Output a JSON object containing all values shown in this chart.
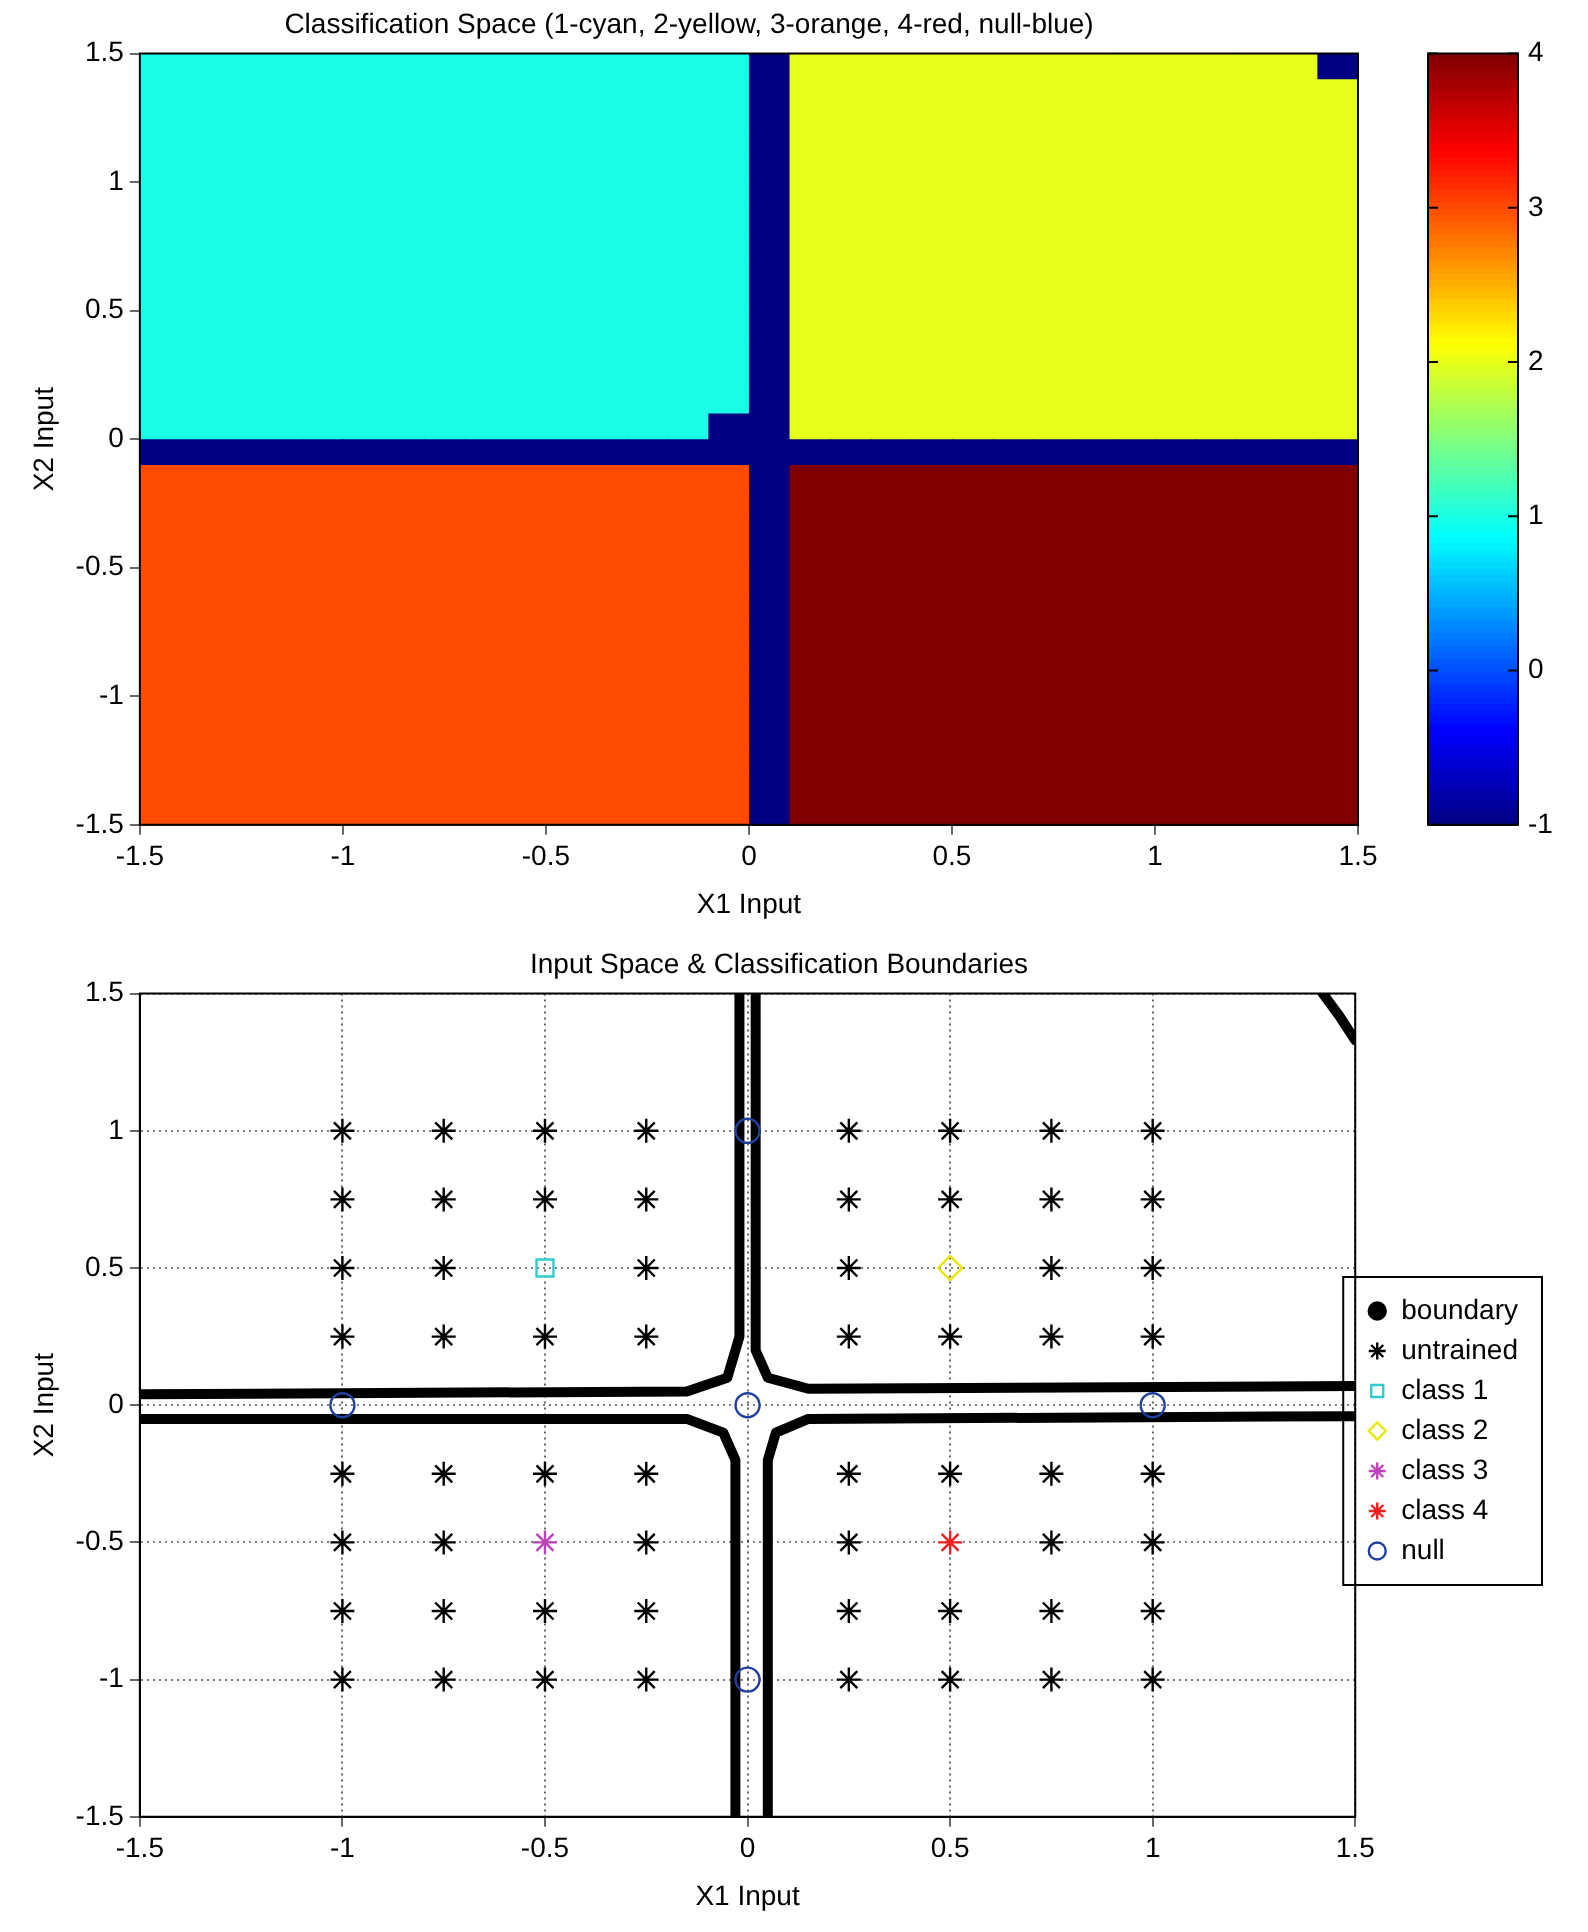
{
  "chart_data": [
    {
      "type": "heatmap",
      "title": "Classification Space (1-cyan, 2-yellow, 3-orange, 4-red, null-blue)",
      "xlabel": "X1 Input",
      "ylabel": "X2 Input",
      "cells": [
        [
          1,
          1,
          1,
          1,
          1,
          1,
          1,
          1,
          1,
          1,
          1,
          1,
          1,
          1,
          1,
          -1,
          2,
          2,
          2,
          2,
          2,
          2,
          2,
          2,
          2,
          2,
          2,
          2,
          2,
          -1
        ],
        [
          1,
          1,
          1,
          1,
          1,
          1,
          1,
          1,
          1,
          1,
          1,
          1,
          1,
          1,
          1,
          -1,
          2,
          2,
          2,
          2,
          2,
          2,
          2,
          2,
          2,
          2,
          2,
          2,
          2,
          2
        ],
        [
          1,
          1,
          1,
          1,
          1,
          1,
          1,
          1,
          1,
          1,
          1,
          1,
          1,
          1,
          1,
          -1,
          2,
          2,
          2,
          2,
          2,
          2,
          2,
          2,
          2,
          2,
          2,
          2,
          2,
          2
        ],
        [
          1,
          1,
          1,
          1,
          1,
          1,
          1,
          1,
          1,
          1,
          1,
          1,
          1,
          1,
          1,
          -1,
          2,
          2,
          2,
          2,
          2,
          2,
          2,
          2,
          2,
          2,
          2,
          2,
          2,
          2
        ],
        [
          1,
          1,
          1,
          1,
          1,
          1,
          1,
          1,
          1,
          1,
          1,
          1,
          1,
          1,
          1,
          -1,
          2,
          2,
          2,
          2,
          2,
          2,
          2,
          2,
          2,
          2,
          2,
          2,
          2,
          2
        ],
        [
          1,
          1,
          1,
          1,
          1,
          1,
          1,
          1,
          1,
          1,
          1,
          1,
          1,
          1,
          1,
          -1,
          2,
          2,
          2,
          2,
          2,
          2,
          2,
          2,
          2,
          2,
          2,
          2,
          2,
          2
        ],
        [
          1,
          1,
          1,
          1,
          1,
          1,
          1,
          1,
          1,
          1,
          1,
          1,
          1,
          1,
          1,
          -1,
          2,
          2,
          2,
          2,
          2,
          2,
          2,
          2,
          2,
          2,
          2,
          2,
          2,
          2
        ],
        [
          1,
          1,
          1,
          1,
          1,
          1,
          1,
          1,
          1,
          1,
          1,
          1,
          1,
          1,
          1,
          -1,
          2,
          2,
          2,
          2,
          2,
          2,
          2,
          2,
          2,
          2,
          2,
          2,
          2,
          2
        ],
        [
          1,
          1,
          1,
          1,
          1,
          1,
          1,
          1,
          1,
          1,
          1,
          1,
          1,
          1,
          1,
          -1,
          2,
          2,
          2,
          2,
          2,
          2,
          2,
          2,
          2,
          2,
          2,
          2,
          2,
          2
        ],
        [
          1,
          1,
          1,
          1,
          1,
          1,
          1,
          1,
          1,
          1,
          1,
          1,
          1,
          1,
          1,
          -1,
          2,
          2,
          2,
          2,
          2,
          2,
          2,
          2,
          2,
          2,
          2,
          2,
          2,
          2
        ],
        [
          1,
          1,
          1,
          1,
          1,
          1,
          1,
          1,
          1,
          1,
          1,
          1,
          1,
          1,
          1,
          -1,
          2,
          2,
          2,
          2,
          2,
          2,
          2,
          2,
          2,
          2,
          2,
          2,
          2,
          2
        ],
        [
          1,
          1,
          1,
          1,
          1,
          1,
          1,
          1,
          1,
          1,
          1,
          1,
          1,
          1,
          1,
          -1,
          2,
          2,
          2,
          2,
          2,
          2,
          2,
          2,
          2,
          2,
          2,
          2,
          2,
          2
        ],
        [
          1,
          1,
          1,
          1,
          1,
          1,
          1,
          1,
          1,
          1,
          1,
          1,
          1,
          1,
          1,
          -1,
          2,
          2,
          2,
          2,
          2,
          2,
          2,
          2,
          2,
          2,
          2,
          2,
          2,
          2
        ],
        [
          1,
          1,
          1,
          1,
          1,
          1,
          1,
          1,
          1,
          1,
          1,
          1,
          1,
          1,
          1,
          -1,
          2,
          2,
          2,
          2,
          2,
          2,
          2,
          2,
          2,
          2,
          2,
          2,
          2,
          2
        ],
        [
          1,
          1,
          1,
          1,
          1,
          1,
          1,
          1,
          1,
          1,
          1,
          1,
          1,
          1,
          -1,
          -1,
          2,
          2,
          2,
          2,
          2,
          2,
          2,
          2,
          2,
          2,
          2,
          2,
          2,
          2
        ],
        [
          -1,
          -1,
          -1,
          -1,
          -1,
          -1,
          -1,
          -1,
          -1,
          -1,
          -1,
          -1,
          -1,
          -1,
          -1,
          -1,
          -1,
          -1,
          -1,
          -1,
          -1,
          -1,
          -1,
          -1,
          -1,
          -1,
          -1,
          -1,
          -1,
          -1
        ],
        [
          3,
          3,
          3,
          3,
          3,
          3,
          3,
          3,
          3,
          3,
          3,
          3,
          3,
          3,
          3,
          -1,
          4,
          4,
          4,
          4,
          4,
          4,
          4,
          4,
          4,
          4,
          4,
          4,
          4,
          4
        ],
        [
          3,
          3,
          3,
          3,
          3,
          3,
          3,
          3,
          3,
          3,
          3,
          3,
          3,
          3,
          3,
          -1,
          4,
          4,
          4,
          4,
          4,
          4,
          4,
          4,
          4,
          4,
          4,
          4,
          4,
          4
        ],
        [
          3,
          3,
          3,
          3,
          3,
          3,
          3,
          3,
          3,
          3,
          3,
          3,
          3,
          3,
          3,
          -1,
          4,
          4,
          4,
          4,
          4,
          4,
          4,
          4,
          4,
          4,
          4,
          4,
          4,
          4
        ],
        [
          3,
          3,
          3,
          3,
          3,
          3,
          3,
          3,
          3,
          3,
          3,
          3,
          3,
          3,
          3,
          -1,
          4,
          4,
          4,
          4,
          4,
          4,
          4,
          4,
          4,
          4,
          4,
          4,
          4,
          4
        ],
        [
          3,
          3,
          3,
          3,
          3,
          3,
          3,
          3,
          3,
          3,
          3,
          3,
          3,
          3,
          3,
          -1,
          4,
          4,
          4,
          4,
          4,
          4,
          4,
          4,
          4,
          4,
          4,
          4,
          4,
          4
        ],
        [
          3,
          3,
          3,
          3,
          3,
          3,
          3,
          3,
          3,
          3,
          3,
          3,
          3,
          3,
          3,
          -1,
          4,
          4,
          4,
          4,
          4,
          4,
          4,
          4,
          4,
          4,
          4,
          4,
          4,
          4
        ],
        [
          3,
          3,
          3,
          3,
          3,
          3,
          3,
          3,
          3,
          3,
          3,
          3,
          3,
          3,
          3,
          -1,
          4,
          4,
          4,
          4,
          4,
          4,
          4,
          4,
          4,
          4,
          4,
          4,
          4,
          4
        ],
        [
          3,
          3,
          3,
          3,
          3,
          3,
          3,
          3,
          3,
          3,
          3,
          3,
          3,
          3,
          3,
          -1,
          4,
          4,
          4,
          4,
          4,
          4,
          4,
          4,
          4,
          4,
          4,
          4,
          4,
          4
        ],
        [
          3,
          3,
          3,
          3,
          3,
          3,
          3,
          3,
          3,
          3,
          3,
          3,
          3,
          3,
          3,
          -1,
          4,
          4,
          4,
          4,
          4,
          4,
          4,
          4,
          4,
          4,
          4,
          4,
          4,
          4
        ],
        [
          3,
          3,
          3,
          3,
          3,
          3,
          3,
          3,
          3,
          3,
          3,
          3,
          3,
          3,
          3,
          -1,
          4,
          4,
          4,
          4,
          4,
          4,
          4,
          4,
          4,
          4,
          4,
          4,
          4,
          4
        ],
        [
          3,
          3,
          3,
          3,
          3,
          3,
          3,
          3,
          3,
          3,
          3,
          3,
          3,
          3,
          3,
          -1,
          4,
          4,
          4,
          4,
          4,
          4,
          4,
          4,
          4,
          4,
          4,
          4,
          4,
          4
        ],
        [
          3,
          3,
          3,
          3,
          3,
          3,
          3,
          3,
          3,
          3,
          3,
          3,
          3,
          3,
          3,
          -1,
          4,
          4,
          4,
          4,
          4,
          4,
          4,
          4,
          4,
          4,
          4,
          4,
          4,
          4
        ],
        [
          3,
          3,
          3,
          3,
          3,
          3,
          3,
          3,
          3,
          3,
          3,
          3,
          3,
          3,
          3,
          -1,
          4,
          4,
          4,
          4,
          4,
          4,
          4,
          4,
          4,
          4,
          4,
          4,
          4,
          4
        ],
        [
          3,
          3,
          3,
          3,
          3,
          3,
          3,
          3,
          3,
          3,
          3,
          3,
          3,
          3,
          3,
          -1,
          4,
          4,
          4,
          4,
          4,
          4,
          4,
          4,
          4,
          4,
          4,
          4,
          4,
          4
        ]
      ],
      "xlim": [
        -1.5,
        1.5
      ],
      "xticks": [
        -1.5,
        -1,
        -0.5,
        0,
        0.5,
        1,
        1.5
      ],
      "ylim": [
        -1.5,
        1.5
      ],
      "yticks": [
        -1.5,
        -1,
        -0.5,
        0,
        0.5,
        1,
        1.5
      ],
      "clim": [
        -1,
        4
      ],
      "cticks": [
        -1,
        0,
        1,
        2,
        3,
        4
      ],
      "grid": false
    },
    {
      "type": "scatter",
      "title": "Input Space & Classification Boundaries",
      "xlabel": "X1 Input",
      "ylabel": "X2 Input",
      "xlim": [
        -1.5,
        1.5
      ],
      "xticks": [
        -1.5,
        -1,
        -0.5,
        0,
        0.5,
        1,
        1.5
      ],
      "ylim": [
        -1.5,
        1.5
      ],
      "yticks": [
        -1.5,
        -1,
        -0.5,
        0,
        0.5,
        1,
        1.5
      ],
      "grid": true,
      "legend": "right",
      "series": [
        {
          "name": "boundary",
          "type": "line",
          "marker": "none",
          "color": "#000000",
          "x": [
            -1.5,
            -0.15,
            -0.05,
            -0.02,
            -0.02,
            null,
            0.02,
            0.02,
            0.05,
            0.15,
            1.5,
            null,
            -1.5,
            -0.15,
            -0.06,
            -0.03,
            -0.03,
            null,
            1.5,
            0.15,
            0.07,
            0.05,
            0.05,
            null,
            1.42,
            1.46,
            1.5
          ],
          "values": [
            0.04,
            0.05,
            0.1,
            0.25,
            1.5,
            null,
            1.5,
            0.2,
            0.1,
            0.06,
            0.07,
            null,
            -0.05,
            -0.05,
            -0.1,
            -0.2,
            -1.5,
            null,
            -0.04,
            -0.05,
            -0.1,
            -0.2,
            -1.5,
            null,
            1.5,
            1.42,
            1.33
          ]
        },
        {
          "name": "untrained",
          "marker": "cross",
          "color": "#000000",
          "x": [
            -1,
            -0.75,
            -0.5,
            -0.25,
            0.25,
            0.5,
            0.75,
            1,
            -1,
            -0.75,
            -0.5,
            -0.25,
            0.25,
            0.5,
            0.75,
            1,
            -1,
            -0.75,
            -0.25,
            0.25,
            0.75,
            1,
            -1,
            -0.75,
            -0.5,
            -0.25,
            0.25,
            0.5,
            0.75,
            1,
            -1,
            -0.75,
            -0.5,
            -0.25,
            0.25,
            0.5,
            0.75,
            1,
            -1,
            -0.75,
            -0.25,
            0.25,
            0.75,
            1,
            -1,
            -0.75,
            -0.5,
            -0.25,
            0.25,
            0.5,
            0.75,
            1,
            -1,
            -0.75,
            -0.5,
            -0.25,
            0.25,
            0.5,
            0.75,
            1
          ],
          "values": [
            1,
            1,
            1,
            1,
            1,
            1,
            1,
            1,
            0.75,
            0.75,
            0.75,
            0.75,
            0.75,
            0.75,
            0.75,
            0.75,
            0.5,
            0.5,
            0.5,
            0.5,
            0.5,
            0.5,
            0.25,
            0.25,
            0.25,
            0.25,
            0.25,
            0.25,
            0.25,
            0.25,
            -0.25,
            -0.25,
            -0.25,
            -0.25,
            -0.25,
            -0.25,
            -0.25,
            -0.25,
            -0.5,
            -0.5,
            -0.5,
            -0.5,
            -0.5,
            -0.5,
            -0.75,
            -0.75,
            -0.75,
            -0.75,
            -0.75,
            -0.75,
            -0.75,
            -0.75,
            -1,
            -1,
            -1,
            -1,
            -1,
            -1,
            -1,
            -1
          ]
        },
        {
          "name": "class 1",
          "marker": "square",
          "color": "#33cccc",
          "x": [
            -0.5
          ],
          "values": [
            0.5
          ]
        },
        {
          "name": "class 2",
          "marker": "diamond",
          "color": "#e8e800",
          "x": [
            0.5
          ],
          "values": [
            0.5
          ]
        },
        {
          "name": "class 3",
          "marker": "cross",
          "color": "#bb44bb",
          "x": [
            -0.5
          ],
          "values": [
            -0.5
          ]
        },
        {
          "name": "class 4",
          "marker": "cross",
          "color": "#ee2020",
          "x": [
            0.5
          ],
          "values": [
            -0.5
          ]
        },
        {
          "name": "null",
          "marker": "circle",
          "color": "#2040a0",
          "x": [
            0,
            -1,
            0,
            1,
            0
          ],
          "values": [
            1,
            0,
            0,
            0,
            -1
          ]
        }
      ]
    }
  ]
}
